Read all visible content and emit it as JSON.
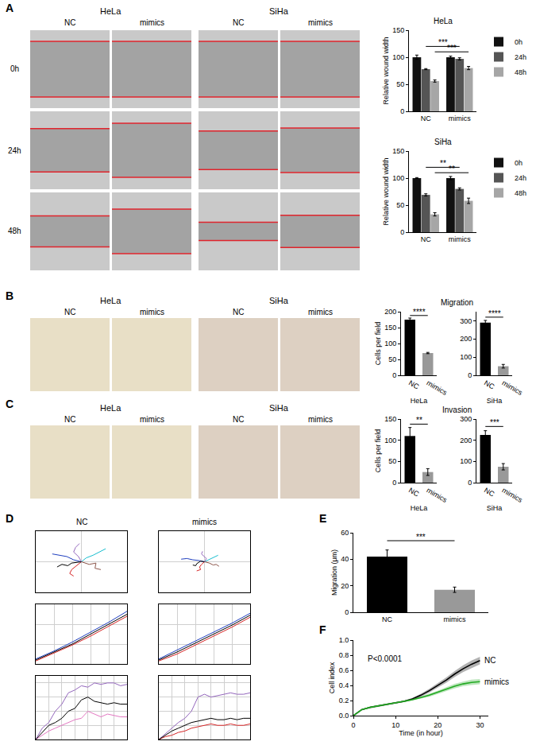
{
  "panel_labels": [
    "A",
    "B",
    "C",
    "D",
    "E",
    "F"
  ],
  "images": {
    "A": {
      "groups": [
        "HeLa",
        "SiHa"
      ],
      "columns": [
        "NC",
        "mimics"
      ],
      "rows": [
        "0h",
        "24h",
        "48h"
      ]
    },
    "B": {
      "groups": [
        "HeLa",
        "SiHa"
      ],
      "columns": [
        "NC",
        "mimics"
      ]
    },
    "C": {
      "groups": [
        "HeLa",
        "SiHa"
      ],
      "columns": [
        "NC",
        "mimics"
      ]
    }
  },
  "chart_data": [
    {
      "panel": "A",
      "type": "bar",
      "title": "HeLa",
      "y_label": "Relative wound width",
      "categories": [
        "NC",
        "mimics"
      ],
      "series": [
        {
          "name": "0h",
          "color": "#111111",
          "values": [
            100,
            100
          ],
          "errors": [
            4,
            2
          ]
        },
        {
          "name": "24h",
          "color": "#555555",
          "values": [
            78,
            97
          ],
          "errors": [
            1,
            2
          ]
        },
        {
          "name": "48h",
          "color": "#a6a6a6",
          "values": [
            56,
            80
          ],
          "errors": [
            2,
            3
          ]
        }
      ],
      "ylim": [
        0,
        150
      ],
      "yticks": [
        0,
        50,
        100,
        150
      ],
      "legend": "right",
      "significance": [
        {
          "from": "NC",
          "to": "mimics",
          "series": "24h",
          "y": 120,
          "label": "***"
        },
        {
          "from": "NC",
          "to": "mimics",
          "series": "48h",
          "y": 110,
          "label": "***"
        }
      ]
    },
    {
      "panel": "A",
      "type": "bar",
      "title": "SiHa",
      "y_label": "Relative wound width",
      "categories": [
        "NC",
        "mimics"
      ],
      "series": [
        {
          "name": "0h",
          "color": "#111111",
          "values": [
            100,
            100
          ],
          "errors": [
            1,
            3
          ]
        },
        {
          "name": "24h",
          "color": "#555555",
          "values": [
            69,
            80
          ],
          "errors": [
            2,
            2
          ]
        },
        {
          "name": "48h",
          "color": "#a6a6a6",
          "values": [
            33,
            58
          ],
          "errors": [
            3,
            5
          ]
        }
      ],
      "ylim": [
        0,
        150
      ],
      "yticks": [
        0,
        50,
        100,
        150
      ],
      "legend": "right",
      "significance": [
        {
          "from": "NC",
          "to": "mimics",
          "series": "24h",
          "y": 120,
          "label": "**"
        },
        {
          "from": "NC",
          "to": "mimics",
          "series": "48h",
          "y": 110,
          "label": "**"
        }
      ]
    },
    {
      "panel": "B",
      "type": "bar",
      "title": "Migration",
      "y_label": "Cells per field",
      "x_label": "HeLa",
      "categories": [
        "NC",
        "mimics"
      ],
      "values": [
        175,
        70
      ],
      "errors": [
        5,
        2
      ],
      "colors": [
        "#000000",
        "#999999"
      ],
      "ylim": [
        0,
        200
      ],
      "yticks": [
        0,
        50,
        100,
        150,
        200
      ],
      "significance": [
        {
          "from": "NC",
          "to": "mimics",
          "y": 188,
          "label": "****"
        }
      ]
    },
    {
      "panel": "B",
      "type": "bar",
      "x_label": "SiHa",
      "categories": [
        "NC",
        "mimics"
      ],
      "values": [
        290,
        50
      ],
      "errors": [
        12,
        10
      ],
      "colors": [
        "#000000",
        "#999999"
      ],
      "ylim": [
        0,
        350
      ],
      "yticks": [
        0,
        100,
        200,
        300
      ],
      "significance": [
        {
          "from": "NC",
          "to": "mimics",
          "y": 320,
          "label": "****"
        }
      ]
    },
    {
      "panel": "C",
      "type": "bar",
      "title": "Invasion",
      "y_label": "Cells per field",
      "x_label": "HeLa",
      "categories": [
        "NC",
        "mimics"
      ],
      "values": [
        110,
        25
      ],
      "errors": [
        20,
        8
      ],
      "colors": [
        "#000000",
        "#999999"
      ],
      "ylim": [
        0,
        150
      ],
      "yticks": [
        0,
        50,
        100,
        150
      ],
      "significance": [
        {
          "from": "NC",
          "to": "mimics",
          "y": 138,
          "label": "**"
        }
      ]
    },
    {
      "panel": "C",
      "type": "bar",
      "x_label": "SiHa",
      "categories": [
        "NC",
        "mimics"
      ],
      "values": [
        225,
        75
      ],
      "errors": [
        20,
        15
      ],
      "colors": [
        "#000000",
        "#999999"
      ],
      "ylim": [
        0,
        300
      ],
      "yticks": [
        0,
        100,
        200,
        300
      ],
      "significance": [
        {
          "from": "NC",
          "to": "mimics",
          "y": 265,
          "label": "***"
        }
      ]
    },
    {
      "panel": "D",
      "type": "line",
      "title": "NC",
      "tick_labels": false,
      "grid": true,
      "xlim": [
        -47,
        47
      ],
      "ylim": [
        -47,
        47
      ],
      "xticks": [
        0
      ],
      "yticks": [
        0
      ],
      "series": [
        {
          "color": "#1f3fbf",
          "x": [
            0,
            -8,
            -15,
            -22,
            -30
          ],
          "values": [
            0,
            3,
            8,
            10,
            12
          ]
        },
        {
          "color": "#17becf",
          "x": [
            0,
            5,
            12,
            18,
            25
          ],
          "values": [
            0,
            6,
            10,
            15,
            20
          ]
        },
        {
          "color": "#d62728",
          "x": [
            0,
            -5,
            -10,
            -12,
            -8
          ],
          "values": [
            0,
            -6,
            -12,
            -18,
            -22
          ]
        },
        {
          "color": "#8c564b",
          "x": [
            0,
            8,
            15,
            14,
            20
          ],
          "values": [
            0,
            -4,
            -2,
            -10,
            -12
          ]
        },
        {
          "color": "#9467bd",
          "x": [
            0,
            -3,
            -8,
            -6,
            -2
          ],
          "values": [
            0,
            8,
            15,
            22,
            28
          ]
        },
        {
          "color": "#000000",
          "x": [
            0,
            -10,
            -14,
            -20,
            -25
          ],
          "values": [
            0,
            -2,
            -6,
            -4,
            -8
          ]
        }
      ]
    },
    {
      "panel": "D",
      "type": "line",
      "title": "mimics",
      "tick_labels": false,
      "grid": true,
      "xlim": [
        -47,
        47
      ],
      "ylim": [
        -47,
        47
      ],
      "xticks": [
        0
      ],
      "yticks": [
        0
      ],
      "series": [
        {
          "color": "#1f3fbf",
          "x": [
            0,
            -6,
            -12,
            -18,
            -24
          ],
          "values": [
            0,
            2,
            3,
            5,
            4
          ]
        },
        {
          "color": "#17becf",
          "x": [
            0,
            4,
            8,
            12,
            14
          ],
          "values": [
            0,
            3,
            5,
            8,
            10
          ]
        },
        {
          "color": "#d62728",
          "x": [
            0,
            -3,
            -5,
            -4,
            -8
          ],
          "values": [
            0,
            -4,
            -8,
            -12,
            -14
          ]
        },
        {
          "color": "#8c564b",
          "x": [
            0,
            5,
            9,
            12,
            15
          ],
          "values": [
            0,
            -2,
            -5,
            -4,
            -7
          ]
        },
        {
          "color": "#9467bd",
          "x": [
            0,
            2,
            -1,
            -3,
            -2
          ],
          "values": [
            0,
            5,
            9,
            12,
            16
          ]
        },
        {
          "color": "#000000",
          "x": [
            0,
            -4,
            -8,
            -9,
            -12
          ],
          "values": [
            0,
            1,
            -3,
            -6,
            -5
          ]
        }
      ]
    },
    {
      "panel": "D",
      "type": "line",
      "tick_labels": false,
      "grid": true,
      "x": [
        0,
        2,
        4,
        6,
        8,
        10
      ],
      "xlim": [
        0,
        10
      ],
      "ylim": [
        0,
        300
      ],
      "xticks": [
        0,
        2,
        4,
        6,
        8,
        10
      ],
      "yticks": [
        0,
        100,
        200,
        300
      ],
      "series": [
        {
          "color": "#d62728",
          "values": [
            15,
            55,
            95,
            140,
            190,
            240
          ]
        },
        {
          "color": "#1f3fbf",
          "values": [
            25,
            65,
            110,
            160,
            210,
            265
          ]
        },
        {
          "color": "#000000",
          "values": [
            20,
            60,
            100,
            150,
            200,
            250
          ]
        }
      ]
    },
    {
      "panel": "D",
      "type": "line",
      "tick_labels": false,
      "grid": true,
      "x": [
        0,
        2,
        4,
        6,
        8,
        10
      ],
      "xlim": [
        0,
        10
      ],
      "ylim": [
        0,
        300
      ],
      "xticks": [
        0,
        2,
        4,
        6,
        8,
        10
      ],
      "yticks": [
        0,
        100,
        200,
        300
      ],
      "series": [
        {
          "color": "#d62728",
          "values": [
            15,
            50,
            95,
            140,
            185,
            235
          ]
        },
        {
          "color": "#1f3fbf",
          "values": [
            25,
            70,
            115,
            160,
            205,
            255
          ]
        },
        {
          "color": "#000000",
          "values": [
            20,
            60,
            105,
            150,
            195,
            245
          ]
        }
      ]
    },
    {
      "panel": "D",
      "type": "line",
      "tick_labels": false,
      "grid": true,
      "x": [
        0,
        1,
        2,
        3,
        4,
        5,
        6,
        7,
        8,
        9,
        10,
        11,
        12,
        13,
        14
      ],
      "xlim": [
        0,
        14
      ],
      "ylim": [
        0,
        45
      ],
      "xticks": [
        0,
        2,
        4,
        6,
        8,
        10,
        12,
        14
      ],
      "yticks": [
        0,
        10,
        20,
        30,
        40
      ],
      "series": [
        {
          "color": "#9467bd",
          "values": [
            0,
            8,
            12,
            20,
            25,
            33,
            35,
            38,
            37,
            40,
            39,
            40,
            40,
            38,
            39
          ]
        },
        {
          "color": "#e377c2",
          "values": [
            0,
            3,
            6,
            8,
            10,
            12,
            14,
            15,
            20,
            18,
            16,
            18,
            17,
            16,
            16
          ]
        },
        {
          "color": "#000000",
          "values": [
            0,
            5,
            10,
            12,
            15,
            20,
            22,
            28,
            30,
            27,
            26,
            25,
            26,
            25,
            25
          ]
        }
      ]
    },
    {
      "panel": "D",
      "type": "line",
      "tick_labels": false,
      "grid": true,
      "x": [
        0,
        1,
        2,
        3,
        4,
        5,
        6,
        7,
        8,
        9,
        10,
        11,
        12,
        13,
        14
      ],
      "xlim": [
        0,
        14
      ],
      "ylim": [
        0,
        45
      ],
      "xticks": [
        0,
        2,
        4,
        6,
        8,
        10,
        12,
        14
      ],
      "yticks": [
        0,
        10,
        20,
        30,
        40
      ],
      "series": [
        {
          "color": "#9467bd",
          "values": [
            0,
            4,
            8,
            12,
            15,
            20,
            30,
            32,
            30,
            31,
            32,
            33,
            32,
            32,
            33
          ]
        },
        {
          "color": "#d62728",
          "values": [
            0,
            2,
            3,
            5,
            6,
            8,
            9,
            10,
            11,
            10,
            10,
            11,
            10,
            10,
            11
          ]
        },
        {
          "color": "#000000",
          "values": [
            0,
            3,
            6,
            8,
            10,
            12,
            13,
            14,
            15,
            14,
            14,
            15,
            14,
            15,
            15
          ]
        }
      ]
    },
    {
      "panel": "E",
      "type": "bar",
      "y_label": "Migration (μm)",
      "categories": [
        "NC",
        "mimics"
      ],
      "values": [
        42,
        17
      ],
      "errors": [
        5,
        2
      ],
      "colors": [
        "#000000",
        "#999999"
      ],
      "ylim": [
        0,
        60
      ],
      "yticks": [
        0,
        20,
        40,
        60
      ],
      "significance": [
        {
          "from": "NC",
          "to": "mimics",
          "y": 54,
          "label": "***"
        }
      ]
    },
    {
      "panel": "F",
      "type": "line",
      "x_label": "Time (in hour)",
      "y_label": "Cell index",
      "x": [
        0,
        2,
        4,
        6,
        8,
        10,
        12,
        14,
        16,
        18,
        20,
        22,
        24,
        26,
        28,
        30
      ],
      "xlim": [
        0,
        32
      ],
      "ylim": [
        0,
        1
      ],
      "xticks": [
        0,
        10,
        20,
        30
      ],
      "yticks": [
        {
          "value": 0,
          "label": "0.0"
        },
        0.2,
        0.4,
        0.6,
        0.8,
        {
          "value": 1,
          "label": "1.0"
        }
      ],
      "series": [
        {
          "name": "NC",
          "color": "#000000",
          "values": [
            0,
            0.08,
            0.11,
            0.13,
            0.15,
            0.17,
            0.19,
            0.22,
            0.27,
            0.33,
            0.4,
            0.47,
            0.55,
            0.62,
            0.68,
            0.73
          ],
          "errors": [
            0,
            0.005,
            0.01,
            0.01,
            0.01,
            0.01,
            0.01,
            0.015,
            0.02,
            0.025,
            0.03,
            0.035,
            0.04,
            0.045,
            0.05,
            0.05
          ]
        },
        {
          "name": "mimics",
          "color": "#22aa22",
          "values": [
            0,
            0.08,
            0.11,
            0.13,
            0.15,
            0.17,
            0.19,
            0.21,
            0.24,
            0.27,
            0.31,
            0.35,
            0.39,
            0.42,
            0.44,
            0.45
          ],
          "errors": [
            0,
            0.005,
            0.01,
            0.01,
            0.01,
            0.01,
            0.01,
            0.01,
            0.015,
            0.02,
            0.02,
            0.025,
            0.03,
            0.03,
            0.035,
            0.035
          ]
        }
      ],
      "annotations": [
        {
          "text": "P<0.0001",
          "x": 3,
          "y": 0.75
        }
      ]
    }
  ]
}
